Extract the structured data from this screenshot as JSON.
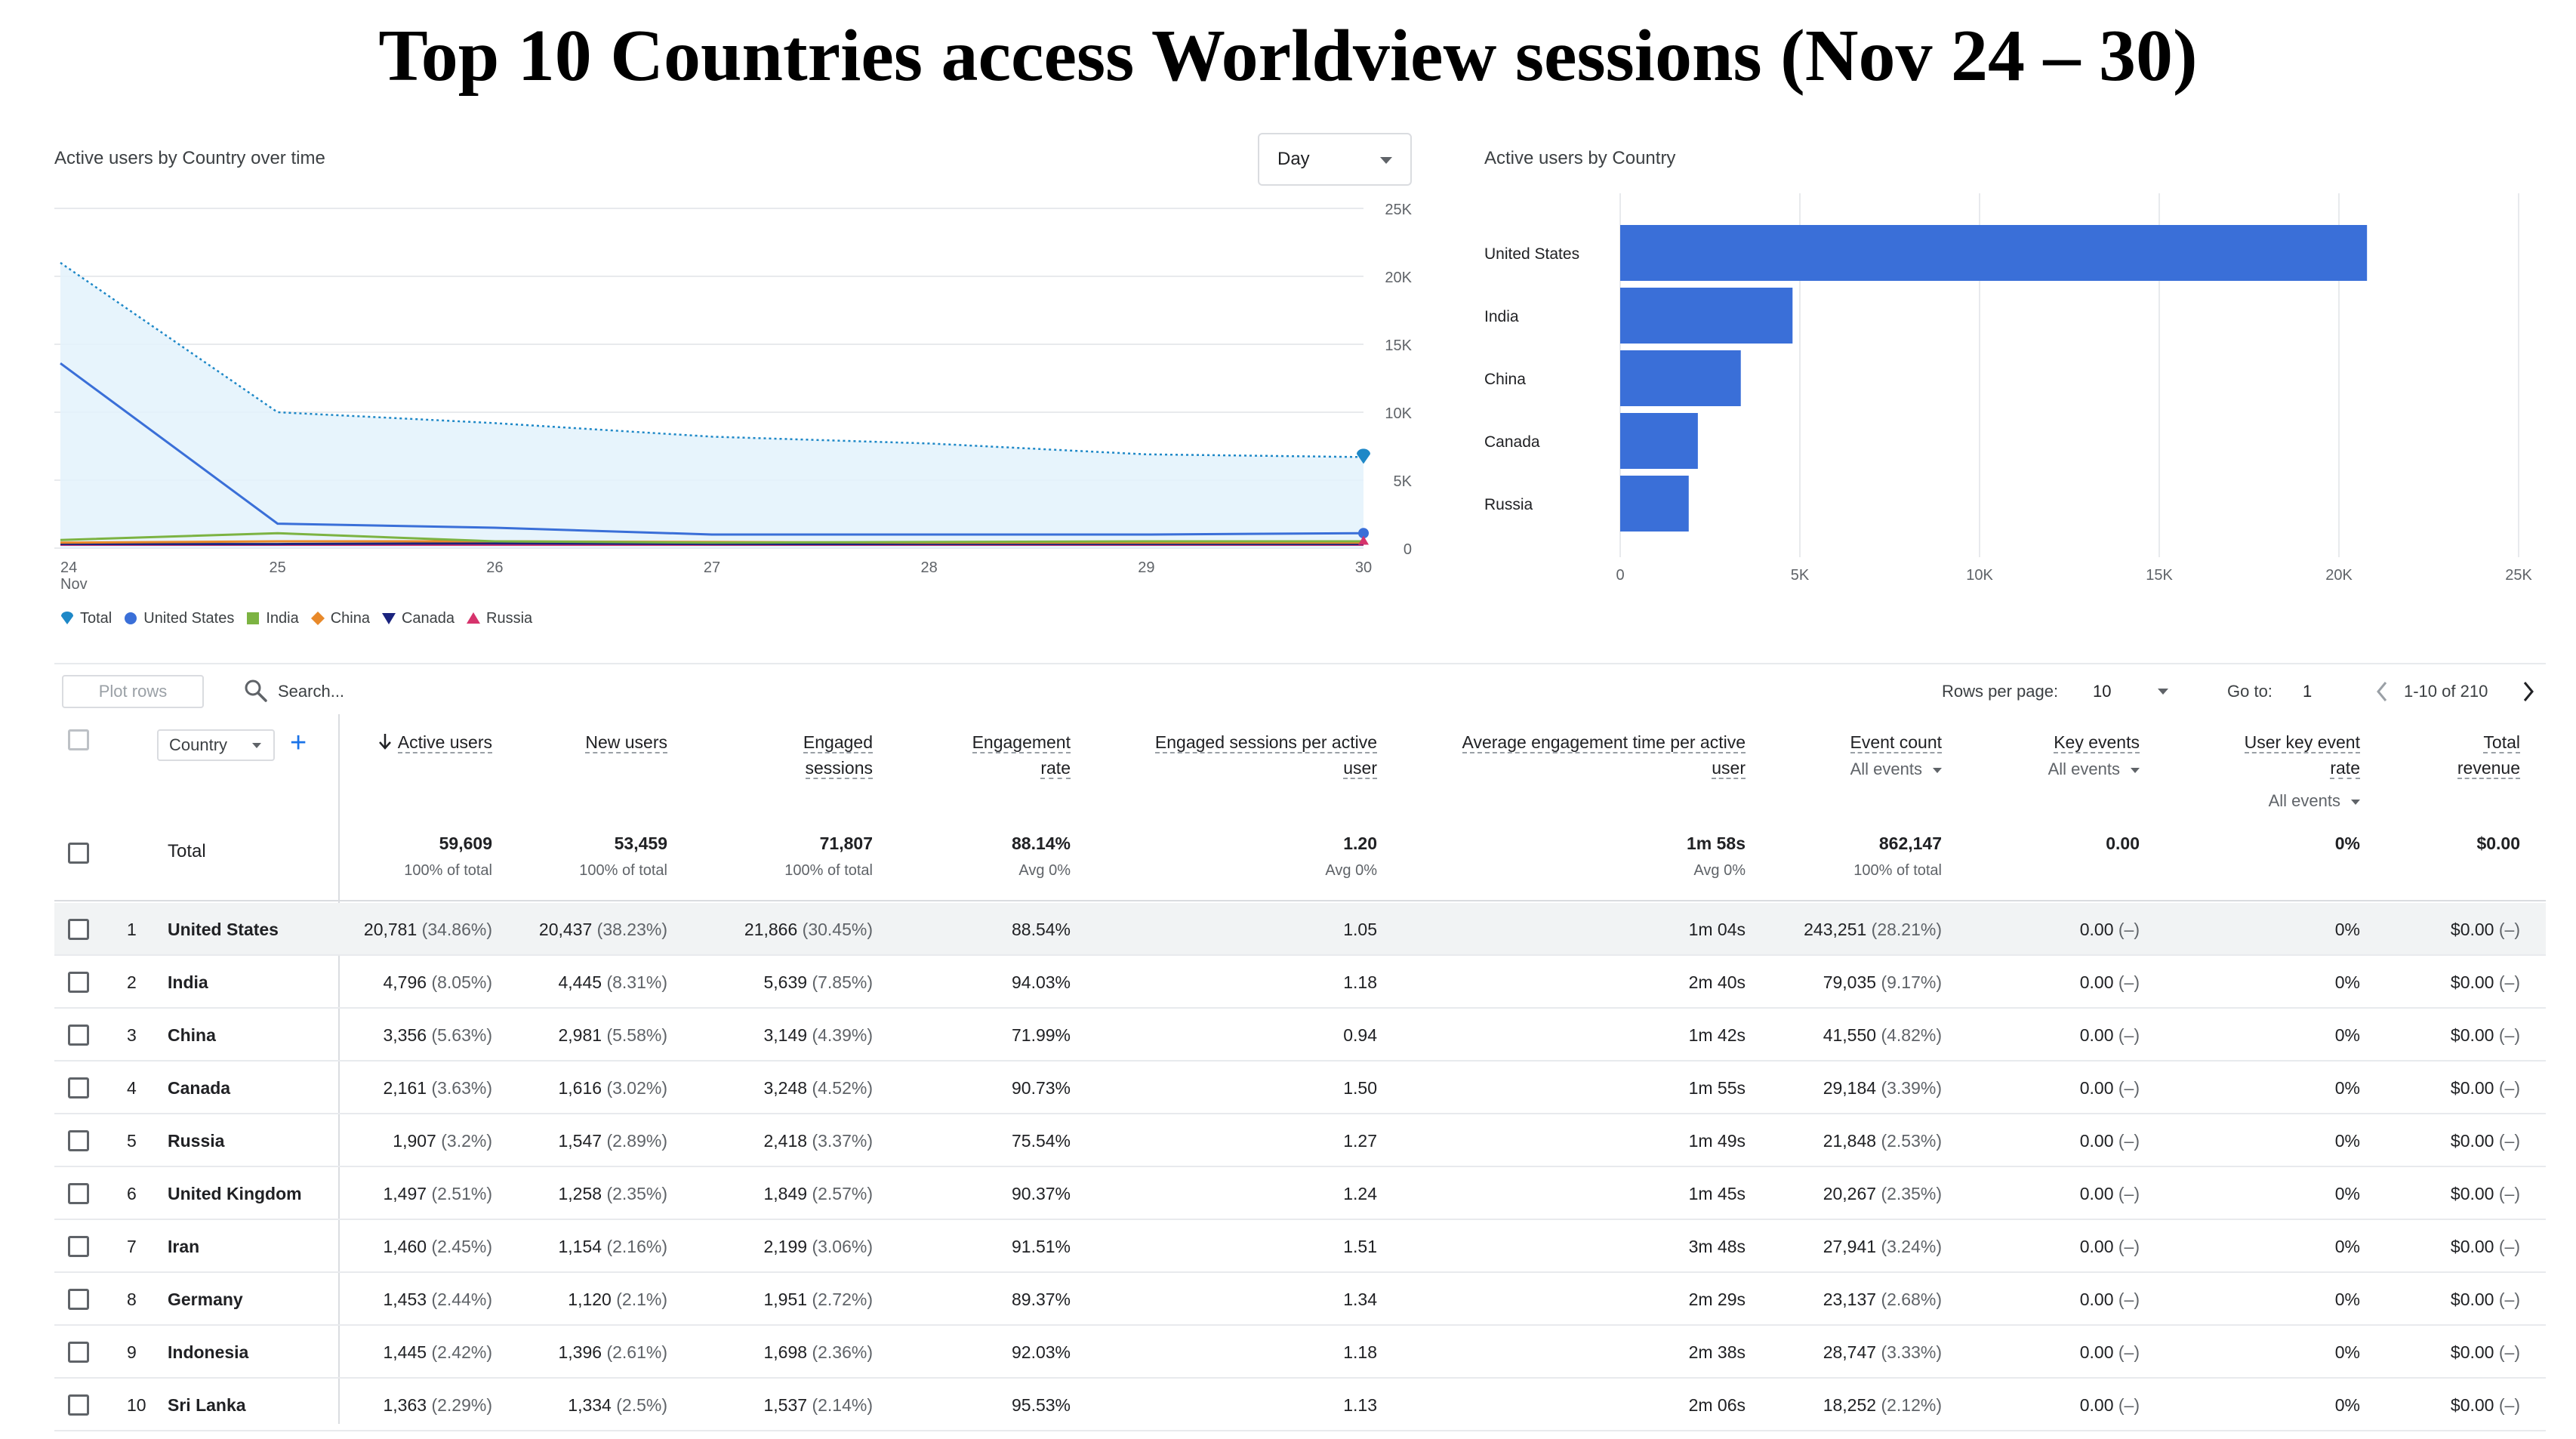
{
  "page_title": "Top 10 Countries access Worldview sessions (Nov 24 – 30)",
  "line_card": {
    "title": "Active users by Country over time",
    "granularity": "Day",
    "legend": [
      {
        "name": "Total",
        "color": "#1e88c7",
        "shape": "pin-icon"
      },
      {
        "name": "United States",
        "color": "#3a6fd8",
        "shape": "circle-icon"
      },
      {
        "name": "India",
        "color": "#7cb342",
        "shape": "square-icon"
      },
      {
        "name": "China",
        "color": "#e8892a",
        "shape": "diamond-icon"
      },
      {
        "name": "Canada",
        "color": "#1a237e",
        "shape": "triangle-down-icon"
      },
      {
        "name": "Russia",
        "color": "#d6336c",
        "shape": "triangle-up-icon"
      }
    ]
  },
  "bar_card": {
    "title": "Active users by Country"
  },
  "chart_data": [
    {
      "type": "line",
      "title": "Active users by Country over time",
      "x": [
        "24",
        "25",
        "26",
        "27",
        "28",
        "29",
        "30"
      ],
      "x_first_sub": "Nov",
      "ylim": [
        0,
        25000
      ],
      "y_ticks": [
        "0",
        "5K",
        "10K",
        "15K",
        "20K",
        "25K"
      ],
      "y_tick_values": [
        0,
        5000,
        10000,
        15000,
        20000,
        25000
      ],
      "series": [
        {
          "name": "Total",
          "values": [
            21000,
            10000,
            9200,
            8200,
            7700,
            6900,
            6700
          ]
        },
        {
          "name": "United States",
          "values": [
            13600,
            1800,
            1500,
            1000,
            1000,
            1000,
            1100
          ]
        },
        {
          "name": "India",
          "values": [
            600,
            1100,
            500,
            400,
            450,
            500,
            500
          ]
        },
        {
          "name": "China",
          "values": [
            400,
            500,
            500,
            450,
            400,
            400,
            400
          ]
        },
        {
          "name": "Canada",
          "values": [
            300,
            300,
            350,
            300,
            300,
            300,
            300
          ]
        },
        {
          "name": "Russia",
          "values": [
            250,
            250,
            250,
            250,
            250,
            250,
            250
          ]
        }
      ]
    },
    {
      "type": "bar",
      "title": "Active users by Country",
      "categories": [
        "United States",
        "India",
        "China",
        "Canada",
        "Russia"
      ],
      "values": [
        20781,
        4796,
        3356,
        2161,
        1907
      ],
      "xlim": [
        0,
        25000
      ],
      "x_ticks": [
        "0",
        "5K",
        "10K",
        "15K",
        "20K",
        "25K"
      ],
      "x_tick_values": [
        0,
        5000,
        10000,
        15000,
        20000,
        25000
      ],
      "bar_color": "#3a6fd8"
    }
  ],
  "toolbar": {
    "plot_rows": "Plot rows",
    "search_placeholder": "Search...",
    "rows_per_page_label": "Rows per page:",
    "rows_per_page": "10",
    "goto_label": "Go to:",
    "goto_value": "1",
    "range": "1-10 of 210"
  },
  "table": {
    "dimension": "Country",
    "headers": [
      {
        "key": "active",
        "label": "Active users",
        "sorted": true
      },
      {
        "key": "new",
        "label": "New users"
      },
      {
        "key": "engaged",
        "label": [
          "Engaged",
          "sessions"
        ]
      },
      {
        "key": "rate",
        "label": [
          "Engagement",
          "rate"
        ]
      },
      {
        "key": "spu",
        "label": [
          "Engaged sessions per active",
          "user"
        ]
      },
      {
        "key": "avgtime",
        "label": [
          "Average engagement time per active",
          "user"
        ]
      },
      {
        "key": "events",
        "label": "Event count",
        "sub": "All events"
      },
      {
        "key": "key",
        "label": "Key events",
        "sub": "All events"
      },
      {
        "key": "ukr",
        "label": [
          "User key event",
          "rate"
        ],
        "sub": "All events"
      },
      {
        "key": "rev",
        "label": [
          "Total",
          "revenue"
        ]
      }
    ],
    "total": {
      "label": "Total",
      "active": "59,609",
      "active_sub": "100% of total",
      "new": "53,459",
      "new_sub": "100% of total",
      "engaged": "71,807",
      "engaged_sub": "100% of total",
      "rate": "88.14%",
      "rate_sub": "Avg 0%",
      "spu": "1.20",
      "spu_sub": "Avg 0%",
      "avgtime": "1m 58s",
      "avgtime_sub": "Avg 0%",
      "events": "862,147",
      "events_sub": "100% of total",
      "key": "0.00",
      "ukr": "0%",
      "rev": "$0.00"
    },
    "rows": [
      {
        "num": "1",
        "name": "United States",
        "active": "20,781",
        "active_pct": "(34.86%)",
        "new": "20,437",
        "new_pct": "(38.23%)",
        "engaged": "21,866",
        "engaged_pct": "(30.45%)",
        "rate": "88.54%",
        "spu": "1.05",
        "avgtime": "1m 04s",
        "events": "243,251",
        "events_pct": "(28.21%)",
        "key": "0.00",
        "key_pct": "(–)",
        "ukr": "0%",
        "rev": "$0.00",
        "rev_pct": "(–)"
      },
      {
        "num": "2",
        "name": "India",
        "active": "4,796",
        "active_pct": "(8.05%)",
        "new": "4,445",
        "new_pct": "(8.31%)",
        "engaged": "5,639",
        "engaged_pct": "(7.85%)",
        "rate": "94.03%",
        "spu": "1.18",
        "avgtime": "2m 40s",
        "events": "79,035",
        "events_pct": "(9.17%)",
        "key": "0.00",
        "key_pct": "(–)",
        "ukr": "0%",
        "rev": "$0.00",
        "rev_pct": "(–)"
      },
      {
        "num": "3",
        "name": "China",
        "active": "3,356",
        "active_pct": "(5.63%)",
        "new": "2,981",
        "new_pct": "(5.58%)",
        "engaged": "3,149",
        "engaged_pct": "(4.39%)",
        "rate": "71.99%",
        "spu": "0.94",
        "avgtime": "1m 42s",
        "events": "41,550",
        "events_pct": "(4.82%)",
        "key": "0.00",
        "key_pct": "(–)",
        "ukr": "0%",
        "rev": "$0.00",
        "rev_pct": "(–)"
      },
      {
        "num": "4",
        "name": "Canada",
        "active": "2,161",
        "active_pct": "(3.63%)",
        "new": "1,616",
        "new_pct": "(3.02%)",
        "engaged": "3,248",
        "engaged_pct": "(4.52%)",
        "rate": "90.73%",
        "spu": "1.50",
        "avgtime": "1m 55s",
        "events": "29,184",
        "events_pct": "(3.39%)",
        "key": "0.00",
        "key_pct": "(–)",
        "ukr": "0%",
        "rev": "$0.00",
        "rev_pct": "(–)"
      },
      {
        "num": "5",
        "name": "Russia",
        "active": "1,907",
        "active_pct": "(3.2%)",
        "new": "1,547",
        "new_pct": "(2.89%)",
        "engaged": "2,418",
        "engaged_pct": "(3.37%)",
        "rate": "75.54%",
        "spu": "1.27",
        "avgtime": "1m 49s",
        "events": "21,848",
        "events_pct": "(2.53%)",
        "key": "0.00",
        "key_pct": "(–)",
        "ukr": "0%",
        "rev": "$0.00",
        "rev_pct": "(–)"
      },
      {
        "num": "6",
        "name": "United Kingdom",
        "active": "1,497",
        "active_pct": "(2.51%)",
        "new": "1,258",
        "new_pct": "(2.35%)",
        "engaged": "1,849",
        "engaged_pct": "(2.57%)",
        "rate": "90.37%",
        "spu": "1.24",
        "avgtime": "1m 45s",
        "events": "20,267",
        "events_pct": "(2.35%)",
        "key": "0.00",
        "key_pct": "(–)",
        "ukr": "0%",
        "rev": "$0.00",
        "rev_pct": "(–)"
      },
      {
        "num": "7",
        "name": "Iran",
        "active": "1,460",
        "active_pct": "(2.45%)",
        "new": "1,154",
        "new_pct": "(2.16%)",
        "engaged": "2,199",
        "engaged_pct": "(3.06%)",
        "rate": "91.51%",
        "spu": "1.51",
        "avgtime": "3m 48s",
        "events": "27,941",
        "events_pct": "(3.24%)",
        "key": "0.00",
        "key_pct": "(–)",
        "ukr": "0%",
        "rev": "$0.00",
        "rev_pct": "(–)"
      },
      {
        "num": "8",
        "name": "Germany",
        "active": "1,453",
        "active_pct": "(2.44%)",
        "new": "1,120",
        "new_pct": "(2.1%)",
        "engaged": "1,951",
        "engaged_pct": "(2.72%)",
        "rate": "89.37%",
        "spu": "1.34",
        "avgtime": "2m 29s",
        "events": "23,137",
        "events_pct": "(2.68%)",
        "key": "0.00",
        "key_pct": "(–)",
        "ukr": "0%",
        "rev": "$0.00",
        "rev_pct": "(–)"
      },
      {
        "num": "9",
        "name": "Indonesia",
        "active": "1,445",
        "active_pct": "(2.42%)",
        "new": "1,396",
        "new_pct": "(2.61%)",
        "engaged": "1,698",
        "engaged_pct": "(2.36%)",
        "rate": "92.03%",
        "spu": "1.18",
        "avgtime": "2m 38s",
        "events": "28,747",
        "events_pct": "(3.33%)",
        "key": "0.00",
        "key_pct": "(–)",
        "ukr": "0%",
        "rev": "$0.00",
        "rev_pct": "(–)"
      },
      {
        "num": "10",
        "name": "Sri Lanka",
        "active": "1,363",
        "active_pct": "(2.29%)",
        "new": "1,334",
        "new_pct": "(2.5%)",
        "engaged": "1,537",
        "engaged_pct": "(2.14%)",
        "rate": "95.53%",
        "spu": "1.13",
        "avgtime": "2m 06s",
        "events": "18,252",
        "events_pct": "(2.12%)",
        "key": "0.00",
        "key_pct": "(–)",
        "ukr": "0%",
        "rev": "$0.00",
        "rev_pct": "(–)"
      }
    ]
  }
}
